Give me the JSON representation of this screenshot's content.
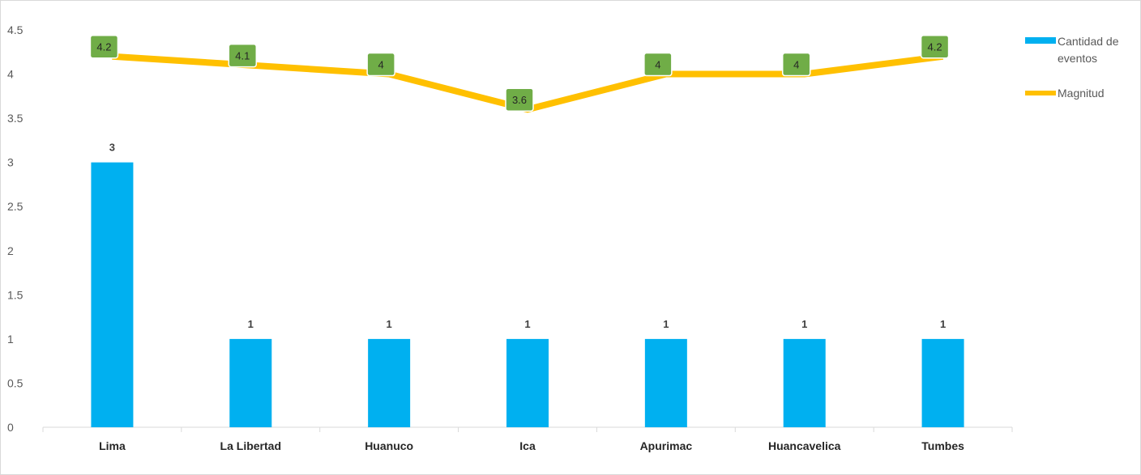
{
  "chart_data": {
    "type": "bar",
    "categories": [
      "Lima",
      "La Libertad",
      "Huanuco",
      "Ica",
      "Apurimac",
      "Huancavelica",
      "Tumbes"
    ],
    "series": [
      {
        "name": "Cantidad de eventos",
        "type": "bar",
        "values": [
          3,
          1,
          1,
          1,
          1,
          1,
          1
        ],
        "color": "#00b0f0"
      },
      {
        "name": "Magnitud",
        "type": "line",
        "values": [
          4.2,
          4.1,
          4,
          3.6,
          4,
          4,
          4.2
        ],
        "color": "#ffc000",
        "label_color": "#70ad47"
      }
    ],
    "y_ticks": [
      "0",
      "0.5",
      "1",
      "1.5",
      "2",
      "2.5",
      "3",
      "3.5",
      "4",
      "4.5"
    ],
    "ylim": [
      0,
      4.5
    ],
    "grid": false,
    "legend": {
      "position": "right",
      "items": [
        {
          "lines": [
            "Cantidad de",
            "eventos"
          ],
          "series": 0
        },
        {
          "lines": [
            "Magnitud"
          ],
          "series": 1
        }
      ]
    }
  }
}
